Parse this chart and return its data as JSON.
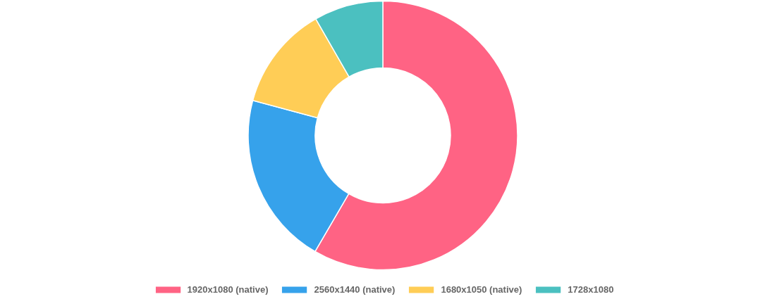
{
  "chart_data": {
    "type": "donut",
    "categories": [
      "1920x1080 (native)",
      "2560x1440 (native)",
      "1680x1050 (native)",
      "1728x1080"
    ],
    "values": [
      58.4,
      20.8,
      12.5,
      8.3
    ],
    "colors": [
      "#ff6384",
      "#36a2eb",
      "#ffcd56",
      "#4bc0c0"
    ],
    "legend": "bottom"
  }
}
